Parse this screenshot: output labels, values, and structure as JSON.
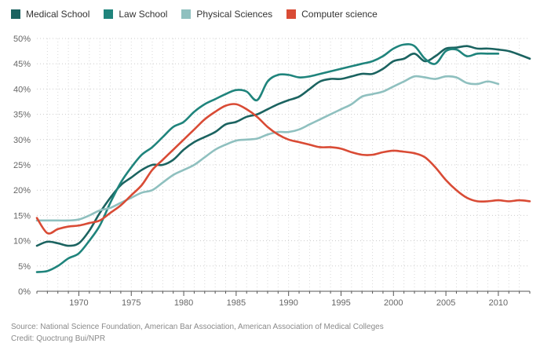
{
  "chart_data": {
    "type": "line",
    "title": "",
    "xlabel": "",
    "ylabel": "",
    "xlim": [
      1966,
      2013
    ],
    "ylim": [
      0,
      50
    ],
    "x_ticks": [
      1970,
      1975,
      1980,
      1985,
      1990,
      1995,
      2000,
      2005,
      2010
    ],
    "y_ticks": [
      0,
      5,
      10,
      15,
      20,
      25,
      30,
      35,
      40,
      45,
      50
    ],
    "y_tick_suffix": "%",
    "grid": true,
    "legend_position": "top-left",
    "series": [
      {
        "name": "Medical School",
        "color": "#1b6360",
        "x": [
          1966,
          1967,
          1968,
          1969,
          1970,
          1971,
          1972,
          1973,
          1974,
          1975,
          1976,
          1977,
          1978,
          1979,
          1980,
          1981,
          1982,
          1983,
          1984,
          1985,
          1986,
          1987,
          1988,
          1989,
          1990,
          1991,
          1992,
          1993,
          1994,
          1995,
          1996,
          1997,
          1998,
          1999,
          2000,
          2001,
          2002,
          2003,
          2004,
          2005,
          2006,
          2007,
          2008,
          2009,
          2010,
          2011,
          2012,
          2013
        ],
        "values": [
          9.0,
          9.8,
          9.5,
          9.0,
          9.5,
          12.0,
          15.5,
          18.5,
          21.0,
          22.5,
          24.0,
          25.0,
          25.0,
          26.0,
          28.0,
          29.5,
          30.5,
          31.5,
          33.0,
          33.5,
          34.5,
          35.0,
          36.0,
          37.0,
          37.8,
          38.5,
          40.0,
          41.5,
          42.0,
          42.0,
          42.5,
          43.0,
          43.0,
          44.0,
          45.5,
          46.0,
          47.0,
          45.5,
          46.5,
          48.0,
          48.2,
          48.5,
          48.0,
          48.0,
          47.8,
          47.5,
          46.8,
          46.0
        ]
      },
      {
        "name": "Law School",
        "color": "#1f847c",
        "x": [
          1966,
          1967,
          1968,
          1969,
          1970,
          1971,
          1972,
          1973,
          1974,
          1975,
          1976,
          1977,
          1978,
          1979,
          1980,
          1981,
          1982,
          1983,
          1984,
          1985,
          1986,
          1987,
          1988,
          1989,
          1990,
          1991,
          1992,
          1993,
          1994,
          1995,
          1996,
          1997,
          1998,
          1999,
          2000,
          2001,
          2002,
          2003,
          2004,
          2005,
          2006,
          2007,
          2008,
          2009,
          2010
        ],
        "values": [
          3.8,
          4.0,
          5.0,
          6.5,
          7.5,
          10.0,
          13.0,
          17.5,
          21.5,
          24.5,
          27.0,
          28.5,
          30.5,
          32.5,
          33.5,
          35.5,
          37.0,
          38.0,
          39.0,
          39.8,
          39.5,
          37.8,
          41.5,
          42.8,
          42.8,
          42.3,
          42.5,
          43.0,
          43.5,
          44.0,
          44.5,
          45.0,
          45.5,
          46.5,
          48.0,
          48.8,
          48.5,
          46.0,
          45.0,
          47.5,
          47.8,
          46.5,
          47.0,
          47.0,
          47.0
        ]
      },
      {
        "name": "Physical Sciences",
        "color": "#8fc0bf",
        "x": [
          1966,
          1967,
          1968,
          1969,
          1970,
          1971,
          1972,
          1973,
          1974,
          1975,
          1976,
          1977,
          1978,
          1979,
          1980,
          1981,
          1982,
          1983,
          1984,
          1985,
          1986,
          1987,
          1988,
          1989,
          1990,
          1991,
          1992,
          1993,
          1994,
          1995,
          1996,
          1997,
          1998,
          1999,
          2000,
          2001,
          2002,
          2003,
          2004,
          2005,
          2006,
          2007,
          2008,
          2009,
          2010
        ],
        "values": [
          14.0,
          14.0,
          14.0,
          14.0,
          14.2,
          15.0,
          16.0,
          16.5,
          17.5,
          18.5,
          19.5,
          20.0,
          21.5,
          23.0,
          24.0,
          25.0,
          26.5,
          28.0,
          29.0,
          29.8,
          30.0,
          30.2,
          31.0,
          31.5,
          31.5,
          32.0,
          33.0,
          34.0,
          35.0,
          36.0,
          37.0,
          38.5,
          39.0,
          39.5,
          40.5,
          41.5,
          42.5,
          42.3,
          42.0,
          42.5,
          42.3,
          41.2,
          41.0,
          41.5,
          41.0
        ]
      },
      {
        "name": "Computer science",
        "color": "#d94b35",
        "x": [
          1966,
          1967,
          1968,
          1969,
          1970,
          1971,
          1972,
          1973,
          1974,
          1975,
          1976,
          1977,
          1978,
          1979,
          1980,
          1981,
          1982,
          1983,
          1984,
          1985,
          1986,
          1987,
          1988,
          1989,
          1990,
          1991,
          1992,
          1993,
          1994,
          1995,
          1996,
          1997,
          1998,
          1999,
          2000,
          2001,
          2002,
          2003,
          2004,
          2005,
          2006,
          2007,
          2008,
          2009,
          2010,
          2011,
          2012,
          2013
        ],
        "values": [
          14.5,
          11.5,
          12.3,
          12.8,
          13.0,
          13.5,
          14.0,
          15.5,
          17.0,
          19.0,
          21.0,
          24.0,
          26.0,
          28.0,
          30.0,
          32.0,
          34.0,
          35.5,
          36.7,
          37.0,
          36.0,
          34.5,
          32.5,
          31.0,
          30.0,
          29.5,
          29.0,
          28.5,
          28.5,
          28.2,
          27.5,
          27.0,
          27.0,
          27.5,
          27.8,
          27.6,
          27.3,
          26.5,
          24.5,
          22.0,
          20.0,
          18.5,
          17.8,
          17.8,
          18.0,
          17.8,
          18.0,
          17.8
        ]
      }
    ]
  },
  "footer": {
    "source": "Source: National Science Foundation, American Bar Association, American Association of Medical Colleges",
    "credit": "Credit: Quoctrung Bui/NPR"
  }
}
